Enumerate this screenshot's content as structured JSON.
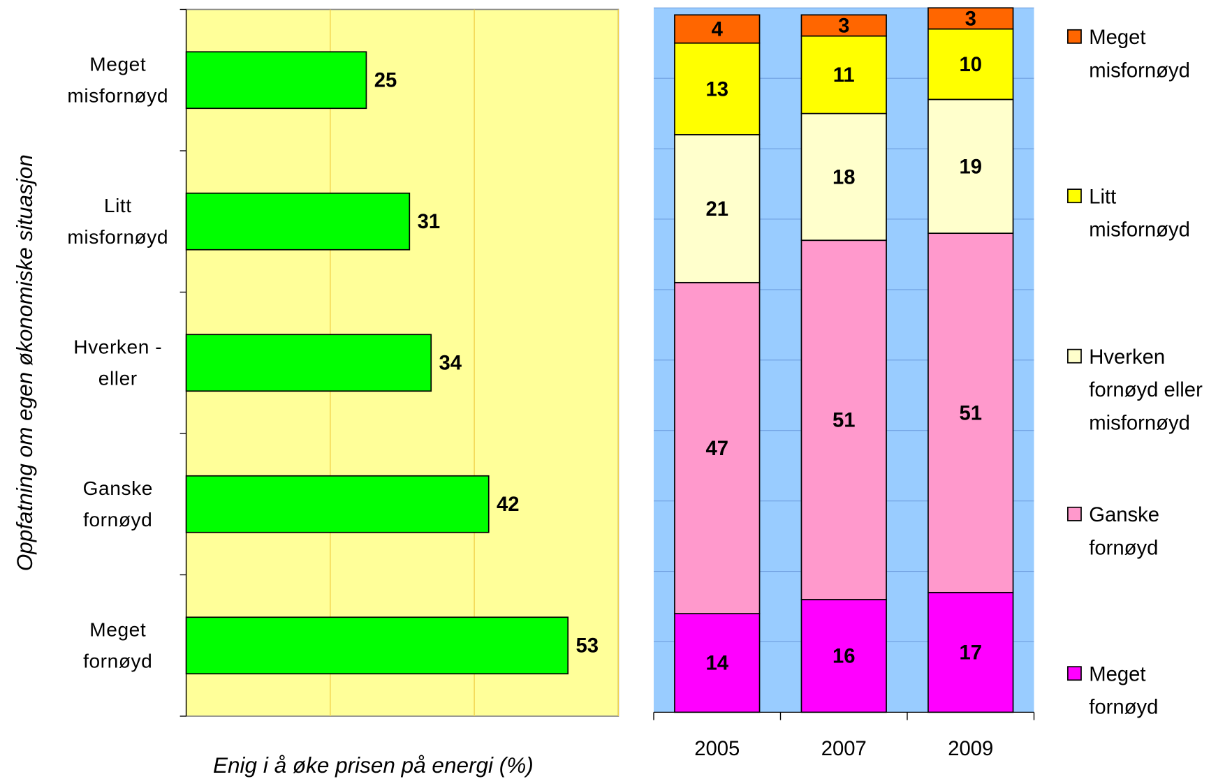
{
  "chart_data": [
    {
      "type": "bar",
      "orientation": "horizontal",
      "categories": [
        "Meget\nmisfornøyd",
        "Litt\nmisfornøyd",
        "Hverken -\neller",
        "Ganske\nfornøyd",
        "Meget\nfornøyd"
      ],
      "values": [
        25,
        31,
        34,
        42,
        53
      ],
      "color": "#00ff00",
      "background": "#ffff99",
      "grid_color": "#f2d24a",
      "xlim": [
        0,
        60
      ],
      "xticks": [
        0,
        20,
        40,
        60
      ],
      "grid": true,
      "x_label": "Enig i å øke prisen på energi (%)",
      "y_label": "Oppfatning om egen økonomiske situasjon"
    },
    {
      "type": "bar",
      "stacked": true,
      "categories": [
        "2005",
        "2007",
        "2009"
      ],
      "series": [
        {
          "name": "Meget\nfornøyd",
          "color": "#ff00ff",
          "values": [
            14,
            16,
            17
          ]
        },
        {
          "name": "Ganske\nfornøyd",
          "color": "#ff99cc",
          "values": [
            47,
            51,
            51
          ]
        },
        {
          "name": "Hverken\nfornøyd eller\nmisfornøyd",
          "color": "#ffffcc",
          "values": [
            21,
            18,
            19
          ]
        },
        {
          "name": "Litt\nmisfornøyd",
          "color": "#ffff00",
          "values": [
            13,
            11,
            10
          ]
        },
        {
          "name": "Meget\nmisfornøyd",
          "color": "#ff6600",
          "values": [
            4,
            3,
            3
          ]
        }
      ],
      "background": "#99ccff",
      "grid_color": "#6f9fe0",
      "ylim": [
        0,
        100
      ],
      "yticks": [
        0,
        10,
        20,
        30,
        40,
        50,
        60,
        70,
        80,
        90,
        100
      ],
      "grid": true,
      "legend": "right"
    }
  ]
}
